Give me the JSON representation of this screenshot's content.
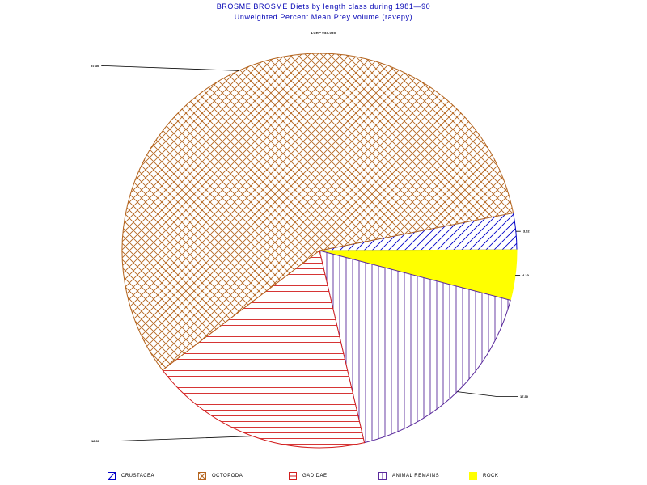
{
  "header": {
    "title": "BROSME BROSME Diets by length class during 1981—90",
    "subtitle": "Unweighted Percent Mean Prey volume (ravepy)",
    "class_label": "LGRP 054-055"
  },
  "chart_data": {
    "type": "pie",
    "title": "BROSME BROSME Diets by length class during 1981—90",
    "subtitle": "Unweighted Percent Mean Prey volume (ravepy)",
    "start_angle_deg": -11,
    "slices": [
      {
        "name": "CRUSTACEA",
        "value": 3.0,
        "label": "3.02",
        "color": "#0000c8",
        "pattern": "diag"
      },
      {
        "name": "ROCK",
        "value": 4.1,
        "label": "4.10",
        "color": "#ffff00",
        "pattern": "solid"
      },
      {
        "name": "ANIMAL REMAINS",
        "value": 17.3,
        "label": "17.30",
        "color": "#5a2a9c",
        "pattern": "vert"
      },
      {
        "name": "GADIDAE",
        "value": 18.3,
        "label": "18.30",
        "color": "#d21e1e",
        "pattern": "horiz"
      },
      {
        "name": "OCTOPODA",
        "value": 57.3,
        "label": "57.30",
        "color": "#b4641e",
        "pattern": "cross"
      }
    ],
    "legend_position": "bottom"
  },
  "legend": [
    {
      "label": "CRUSTACEA"
    },
    {
      "label": "OCTOPODA"
    },
    {
      "label": "GADIDAE"
    },
    {
      "label": "ANIMAL REMAINS"
    },
    {
      "label": "ROCK"
    }
  ]
}
